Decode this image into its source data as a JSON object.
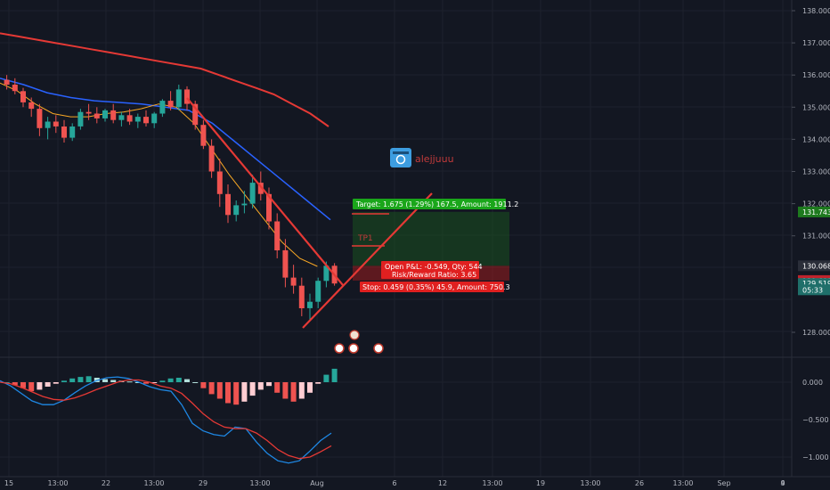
{
  "watermark": {
    "author": "alejjuuu"
  },
  "annotations": {
    "tp1_label": "TP1"
  },
  "position": {
    "target_text": "Target: 1.675 (1.29%) 167.5, Amount: 1911.2",
    "open_pnl_text": "Open P&L: -0.549, Qty: 544",
    "rr_text": "Risk/Reward Ratio: 3.65",
    "stop_text": "Stop: 0.459 (0.35%) 45.9, Amount: 750.3"
  },
  "price_axis": {
    "ticks": [
      "138.000",
      "137.000",
      "136.000",
      "135.000",
      "134.000",
      "133.000",
      "132.000",
      "131.000",
      "128.000"
    ],
    "labels": [
      {
        "text": "131.743",
        "bg": "#1e7a1e",
        "value": 131.743
      },
      {
        "text": "130.068",
        "bg": "#2a2e39",
        "value": 130.068
      },
      {
        "text": "129.609",
        "bg": "#c0232c",
        "value": 129.609
      },
      {
        "text": "129.519",
        "bg": "#1f6f6a",
        "value": 129.519
      },
      {
        "text": "05:33",
        "bg": "#1f6f6a",
        "value": 129.32
      }
    ]
  },
  "macd_axis": {
    "ticks": [
      "0.000",
      "−0.500",
      "−1.000"
    ]
  },
  "time_axis": {
    "ticks": [
      "15",
      "13:00",
      "22",
      "13:00",
      "29",
      "13:00",
      "Aug",
      "6",
      "12",
      "13:00",
      "19",
      "13:00",
      "26",
      "13:00",
      "Sep",
      "4",
      "9"
    ]
  },
  "colors": {
    "background": "#131722",
    "bull": "#26a69a",
    "bear": "#ef5350",
    "ma_slow": "#e53935",
    "ma_mid": "#2962ff",
    "ma_fast": "#f9a825",
    "trendline": "#e53935",
    "target_zone": "#1b5e20",
    "stop_zone": "#b71c1c",
    "macd_line": "#1e88e5",
    "signal_line": "#e53935"
  },
  "chart_data": {
    "type": "candlestick",
    "x_axis": "date",
    "y_scale": "linear",
    "y_range": [
      127.6,
      138.2
    ],
    "candles": [
      [
        135.85,
        136.0,
        135.55,
        135.7
      ],
      [
        135.7,
        135.9,
        135.4,
        135.5
      ],
      [
        135.5,
        135.6,
        135.0,
        135.15
      ],
      [
        135.15,
        135.3,
        134.7,
        134.95
      ],
      [
        134.95,
        135.1,
        134.1,
        134.35
      ],
      [
        134.35,
        134.7,
        134.0,
        134.55
      ],
      [
        134.55,
        134.75,
        134.2,
        134.4
      ],
      [
        134.4,
        134.6,
        133.9,
        134.05
      ],
      [
        134.05,
        134.5,
        133.95,
        134.4
      ],
      [
        134.4,
        134.95,
        134.3,
        134.85
      ],
      [
        134.85,
        135.1,
        134.6,
        134.8
      ],
      [
        134.8,
        135.0,
        134.5,
        134.65
      ],
      [
        134.65,
        134.95,
        134.55,
        134.9
      ],
      [
        134.9,
        135.1,
        134.5,
        134.6
      ],
      [
        134.6,
        134.85,
        134.4,
        134.75
      ],
      [
        134.75,
        134.95,
        134.45,
        134.55
      ],
      [
        134.55,
        134.8,
        134.35,
        134.7
      ],
      [
        134.7,
        134.9,
        134.4,
        134.5
      ],
      [
        134.5,
        134.85,
        134.35,
        134.8
      ],
      [
        134.8,
        135.25,
        134.7,
        135.2
      ],
      [
        135.2,
        135.5,
        134.9,
        135.0
      ],
      [
        135.0,
        135.7,
        134.9,
        135.55
      ],
      [
        135.55,
        135.65,
        134.9,
        135.1
      ],
      [
        135.1,
        135.2,
        134.3,
        134.45
      ],
      [
        134.45,
        134.6,
        133.7,
        133.8
      ],
      [
        133.8,
        134.0,
        132.8,
        133.0
      ],
      [
        133.0,
        133.4,
        131.9,
        132.3
      ],
      [
        132.3,
        132.6,
        131.4,
        131.65
      ],
      [
        131.65,
        132.1,
        131.45,
        131.95
      ],
      [
        131.95,
        132.4,
        131.7,
        132.0
      ],
      [
        132.0,
        132.9,
        131.85,
        132.65
      ],
      [
        132.65,
        133.0,
        132.1,
        132.3
      ],
      [
        132.3,
        132.5,
        131.2,
        131.45
      ],
      [
        131.45,
        131.7,
        130.3,
        130.55
      ],
      [
        130.55,
        130.9,
        129.4,
        129.7
      ],
      [
        129.7,
        130.1,
        129.2,
        129.45
      ],
      [
        129.45,
        129.7,
        128.5,
        128.75
      ],
      [
        128.75,
        129.2,
        128.4,
        128.95
      ],
      [
        128.95,
        129.7,
        128.75,
        129.6
      ],
      [
        129.6,
        130.2,
        129.4,
        130.07
      ],
      [
        130.07,
        130.15,
        129.45,
        129.52
      ]
    ],
    "ma_slow": [
      137.3,
      137.2,
      137.1,
      137.0,
      136.9,
      136.8,
      136.7,
      136.6,
      136.5,
      136.4,
      136.3,
      136.2,
      136.0,
      135.8,
      135.6,
      135.4,
      135.1,
      134.8,
      134.4
    ],
    "ma_mid": [
      135.9,
      135.7,
      135.45,
      135.3,
      135.2,
      135.15,
      135.1,
      135.0,
      134.9,
      134.5,
      133.9,
      133.3,
      132.7,
      132.1,
      131.5
    ],
    "ma_fast": [
      135.75,
      135.5,
      135.1,
      134.8,
      134.7,
      134.7,
      134.8,
      134.85,
      134.95,
      135.1,
      135.0,
      134.5,
      133.7,
      132.9,
      132.2,
      131.5,
      130.8,
      130.3,
      130.05
    ],
    "target_price": 131.743,
    "entry_price": 130.068,
    "stop_price": 129.609,
    "macd_histogram": [
      0.0,
      -0.04,
      -0.08,
      -0.12,
      -0.1,
      -0.06,
      -0.02,
      0.02,
      0.05,
      0.07,
      0.08,
      0.06,
      0.04,
      0.03,
      0.02,
      0.01,
      0.0,
      -0.02,
      -0.01,
      0.02,
      0.05,
      0.06,
      0.04,
      0.0,
      -0.08,
      -0.16,
      -0.22,
      -0.28,
      -0.3,
      -0.26,
      -0.18,
      -0.1,
      -0.05,
      -0.14,
      -0.22,
      -0.26,
      -0.22,
      -0.14,
      -0.02,
      0.1,
      0.18
    ],
    "macd_line": [
      0.02,
      -0.05,
      -0.15,
      -0.25,
      -0.3,
      -0.3,
      -0.24,
      -0.14,
      -0.05,
      0.02,
      0.06,
      0.07,
      0.05,
      0.0,
      -0.06,
      -0.1,
      -0.12,
      -0.3,
      -0.55,
      -0.65,
      -0.7,
      -0.72,
      -0.6,
      -0.62,
      -0.8,
      -0.95,
      -1.05,
      -1.08,
      -1.05,
      -0.92,
      -0.78,
      -0.68
    ],
    "signal_line": [
      0.0,
      -0.02,
      -0.07,
      -0.13,
      -0.19,
      -0.23,
      -0.24,
      -0.21,
      -0.16,
      -0.1,
      -0.05,
      0.0,
      0.03,
      0.03,
      0.0,
      -0.05,
      -0.08,
      -0.15,
      -0.28,
      -0.42,
      -0.53,
      -0.6,
      -0.62,
      -0.62,
      -0.68,
      -0.78,
      -0.9,
      -0.98,
      -1.02,
      -1.0,
      -0.93,
      -0.85
    ],
    "macd_range": [
      -1.2,
      0.3
    ]
  }
}
